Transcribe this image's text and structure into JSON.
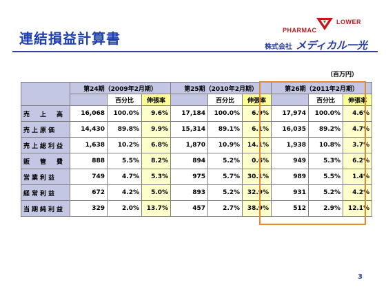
{
  "title": "連結損益計算書",
  "brand": {
    "line1": "PHARMAC",
    "line2": "LOWER",
    "kabushiki": "株式会社",
    "name": "メディカル一光"
  },
  "unit": "（百万円）",
  "periods": [
    "第24期（2009年2月期）",
    "第25期（2010年2月期）",
    "第26期（2011年2月期）"
  ],
  "subheaders": [
    "百分比",
    "伸張率"
  ],
  "rows": [
    {
      "label": "売　上　高",
      "cells": [
        "16,068",
        "100.0%",
        "9.6%",
        "17,184",
        "100.0%",
        "6.9%",
        "17,974",
        "100.0%",
        "4.6%"
      ]
    },
    {
      "label": "売上原価",
      "cells": [
        "14,430",
        "89.8%",
        "9.9%",
        "15,314",
        "89.1%",
        "6.1%",
        "16,035",
        "89.2%",
        "4.7%"
      ]
    },
    {
      "label": "売上総利益",
      "cells": [
        "1,638",
        "10.2%",
        "6.8%",
        "1,870",
        "10.9%",
        "14.1%",
        "1,938",
        "10.8%",
        "3.7%"
      ]
    },
    {
      "label": "販　管　費",
      "cells": [
        "888",
        "5.5%",
        "8.2%",
        "894",
        "5.2%",
        "0.6%",
        "949",
        "5.3%",
        "6.2%"
      ]
    },
    {
      "label": "営業利益",
      "cells": [
        "749",
        "4.7%",
        "5.3%",
        "975",
        "5.7%",
        "30.1%",
        "989",
        "5.5%",
        "1.4%"
      ]
    },
    {
      "label": "経常利益",
      "cells": [
        "672",
        "4.2%",
        "5.0%",
        "893",
        "5.2%",
        "32.9%",
        "931",
        "5.2%",
        "4.2%"
      ]
    },
    {
      "label": "当期純利益",
      "cells": [
        "329",
        "2.0%",
        "13.7%",
        "457",
        "2.7%",
        "38.9%",
        "512",
        "2.9%",
        "12.1%"
      ]
    }
  ],
  "page_number": "3",
  "colors": {
    "title": "#1d3fb0",
    "header_fill": "#c3c7e3",
    "growth_fill": "#ffffcc",
    "highlight_border": "#e88a2c"
  }
}
